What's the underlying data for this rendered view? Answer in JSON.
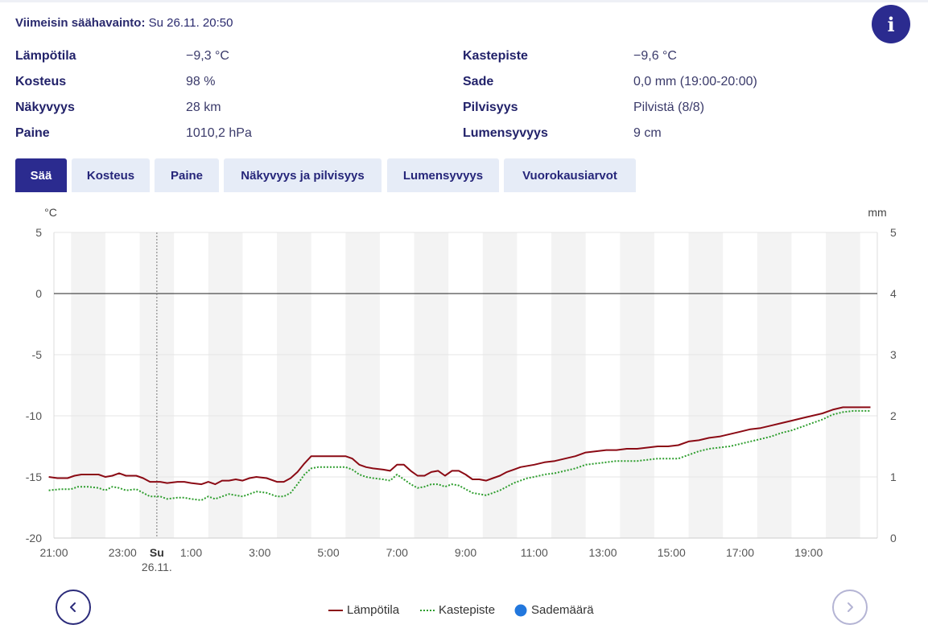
{
  "header": {
    "label": "Viimeisin säähavainto:",
    "value": "Su 26.11. 20:50",
    "info_label": "i"
  },
  "observations_left": [
    {
      "label": "Lämpötila",
      "value": "−9,3 °C"
    },
    {
      "label": "Kosteus",
      "value": "98 %"
    },
    {
      "label": "Näkyvyys",
      "value": "28 km"
    },
    {
      "label": "Paine",
      "value": "1010,2 hPa"
    }
  ],
  "observations_right": [
    {
      "label": "Kastepiste",
      "value": "−9,6 °C"
    },
    {
      "label": "Sade",
      "value": "0,0 mm (19:00-20:00)"
    },
    {
      "label": "Pilvisyys",
      "value": "Pilvistä (8/8)"
    },
    {
      "label": "Lumensyvyys",
      "value": "9 cm"
    }
  ],
  "tabs": [
    {
      "label": "Sää",
      "active": true
    },
    {
      "label": "Kosteus",
      "active": false
    },
    {
      "label": "Paine",
      "active": false
    },
    {
      "label": "Näkyvyys ja pilvisyys",
      "active": false
    },
    {
      "label": "Lumensyvyys",
      "active": false
    },
    {
      "label": "Vuorokausiarvot",
      "active": false
    }
  ],
  "chart_data": {
    "type": "line",
    "left_unit": "°C",
    "right_unit": "mm",
    "y_left_range": [
      -20,
      5
    ],
    "y_left_ticks": [
      "5",
      "0",
      "-5",
      "-10",
      "-15",
      "-20"
    ],
    "y_right_range": [
      0,
      5
    ],
    "y_right_ticks": [
      "5",
      "4",
      "3",
      "2",
      "1",
      "0"
    ],
    "x_range_hours": [
      21,
      45
    ],
    "x_ticks": [
      {
        "hour": 21,
        "label": "21:00"
      },
      {
        "hour": 23,
        "label": "23:00"
      },
      {
        "hour": 24,
        "label": "Su",
        "sublabel": "26.11."
      },
      {
        "hour": 25,
        "label": "1:00"
      },
      {
        "hour": 27,
        "label": "3:00"
      },
      {
        "hour": 29,
        "label": "5:00"
      },
      {
        "hour": 31,
        "label": "7:00"
      },
      {
        "hour": 33,
        "label": "9:00"
      },
      {
        "hour": 35,
        "label": "11:00"
      },
      {
        "hour": 37,
        "label": "13:00"
      },
      {
        "hour": 39,
        "label": "15:00"
      },
      {
        "hour": 41,
        "label": "17:00"
      },
      {
        "hour": 43,
        "label": "19:00"
      }
    ],
    "zero_line": 0,
    "day_divider_hour": 24,
    "grid": true,
    "series": [
      {
        "name": "Lämpötila",
        "color": "#8b0a14",
        "style": "solid",
        "points": [
          [
            20.85,
            -15.0
          ],
          [
            21.1,
            -15.1
          ],
          [
            21.4,
            -15.1
          ],
          [
            21.6,
            -14.9
          ],
          [
            21.8,
            -14.8
          ],
          [
            22.3,
            -14.8
          ],
          [
            22.5,
            -15.0
          ],
          [
            22.7,
            -14.9
          ],
          [
            22.9,
            -14.7
          ],
          [
            23.1,
            -14.9
          ],
          [
            23.4,
            -14.9
          ],
          [
            23.6,
            -15.1
          ],
          [
            23.8,
            -15.4
          ],
          [
            24.1,
            -15.4
          ],
          [
            24.3,
            -15.5
          ],
          [
            24.6,
            -15.4
          ],
          [
            24.8,
            -15.4
          ],
          [
            25.0,
            -15.5
          ],
          [
            25.3,
            -15.6
          ],
          [
            25.5,
            -15.4
          ],
          [
            25.7,
            -15.6
          ],
          [
            25.9,
            -15.3
          ],
          [
            26.1,
            -15.3
          ],
          [
            26.3,
            -15.2
          ],
          [
            26.5,
            -15.3
          ],
          [
            26.7,
            -15.1
          ],
          [
            26.9,
            -15.0
          ],
          [
            27.2,
            -15.1
          ],
          [
            27.5,
            -15.4
          ],
          [
            27.7,
            -15.4
          ],
          [
            27.9,
            -15.1
          ],
          [
            28.1,
            -14.6
          ],
          [
            28.3,
            -13.9
          ],
          [
            28.5,
            -13.3
          ],
          [
            28.7,
            -13.3
          ],
          [
            29.0,
            -13.3
          ],
          [
            29.5,
            -13.3
          ],
          [
            29.7,
            -13.5
          ],
          [
            29.9,
            -14.0
          ],
          [
            30.1,
            -14.2
          ],
          [
            30.3,
            -14.3
          ],
          [
            30.6,
            -14.4
          ],
          [
            30.8,
            -14.5
          ],
          [
            31.0,
            -14.0
          ],
          [
            31.2,
            -14.0
          ],
          [
            31.4,
            -14.5
          ],
          [
            31.6,
            -14.9
          ],
          [
            31.8,
            -14.9
          ],
          [
            32.0,
            -14.6
          ],
          [
            32.2,
            -14.5
          ],
          [
            32.4,
            -14.9
          ],
          [
            32.6,
            -14.5
          ],
          [
            32.8,
            -14.5
          ],
          [
            33.0,
            -14.8
          ],
          [
            33.2,
            -15.2
          ],
          [
            33.4,
            -15.2
          ],
          [
            33.6,
            -15.3
          ],
          [
            33.8,
            -15.1
          ],
          [
            34.0,
            -14.9
          ],
          [
            34.2,
            -14.6
          ],
          [
            34.4,
            -14.4
          ],
          [
            34.6,
            -14.2
          ],
          [
            34.8,
            -14.1
          ],
          [
            35.0,
            -14.0
          ],
          [
            35.3,
            -13.8
          ],
          [
            35.6,
            -13.7
          ],
          [
            35.9,
            -13.5
          ],
          [
            36.2,
            -13.3
          ],
          [
            36.5,
            -13.0
          ],
          [
            36.8,
            -12.9
          ],
          [
            37.1,
            -12.8
          ],
          [
            37.4,
            -12.8
          ],
          [
            37.7,
            -12.7
          ],
          [
            38.0,
            -12.7
          ],
          [
            38.3,
            -12.6
          ],
          [
            38.6,
            -12.5
          ],
          [
            38.9,
            -12.5
          ],
          [
            39.2,
            -12.4
          ],
          [
            39.5,
            -12.1
          ],
          [
            39.8,
            -12.0
          ],
          [
            40.1,
            -11.8
          ],
          [
            40.4,
            -11.7
          ],
          [
            40.7,
            -11.5
          ],
          [
            41.0,
            -11.3
          ],
          [
            41.3,
            -11.1
          ],
          [
            41.6,
            -11.0
          ],
          [
            41.9,
            -10.8
          ],
          [
            42.2,
            -10.6
          ],
          [
            42.5,
            -10.4
          ],
          [
            42.8,
            -10.2
          ],
          [
            43.1,
            -10.0
          ],
          [
            43.4,
            -9.8
          ],
          [
            43.7,
            -9.5
          ],
          [
            44.0,
            -9.3
          ],
          [
            44.3,
            -9.3
          ],
          [
            44.8,
            -9.3
          ]
        ]
      },
      {
        "name": "Kastepiste",
        "color": "#2e9e2e",
        "style": "dotted",
        "points": [
          [
            20.85,
            -16.1
          ],
          [
            21.2,
            -16.0
          ],
          [
            21.5,
            -16.0
          ],
          [
            21.7,
            -15.8
          ],
          [
            22.0,
            -15.8
          ],
          [
            22.3,
            -15.9
          ],
          [
            22.5,
            -16.1
          ],
          [
            22.7,
            -15.8
          ],
          [
            22.9,
            -15.9
          ],
          [
            23.1,
            -16.1
          ],
          [
            23.4,
            -16.0
          ],
          [
            23.6,
            -16.3
          ],
          [
            23.8,
            -16.6
          ],
          [
            24.1,
            -16.6
          ],
          [
            24.3,
            -16.8
          ],
          [
            24.6,
            -16.7
          ],
          [
            24.8,
            -16.7
          ],
          [
            25.0,
            -16.8
          ],
          [
            25.3,
            -16.9
          ],
          [
            25.5,
            -16.6
          ],
          [
            25.7,
            -16.8
          ],
          [
            25.9,
            -16.6
          ],
          [
            26.1,
            -16.4
          ],
          [
            26.3,
            -16.5
          ],
          [
            26.5,
            -16.6
          ],
          [
            26.7,
            -16.4
          ],
          [
            26.9,
            -16.2
          ],
          [
            27.2,
            -16.3
          ],
          [
            27.5,
            -16.6
          ],
          [
            27.7,
            -16.6
          ],
          [
            27.9,
            -16.3
          ],
          [
            28.1,
            -15.6
          ],
          [
            28.3,
            -14.8
          ],
          [
            28.5,
            -14.3
          ],
          [
            28.7,
            -14.2
          ],
          [
            29.0,
            -14.2
          ],
          [
            29.5,
            -14.2
          ],
          [
            29.7,
            -14.4
          ],
          [
            29.9,
            -14.8
          ],
          [
            30.1,
            -15.0
          ],
          [
            30.3,
            -15.1
          ],
          [
            30.6,
            -15.2
          ],
          [
            30.8,
            -15.3
          ],
          [
            31.0,
            -14.8
          ],
          [
            31.2,
            -15.2
          ],
          [
            31.4,
            -15.6
          ],
          [
            31.6,
            -15.9
          ],
          [
            31.8,
            -15.8
          ],
          [
            32.0,
            -15.6
          ],
          [
            32.2,
            -15.6
          ],
          [
            32.4,
            -15.8
          ],
          [
            32.6,
            -15.6
          ],
          [
            32.8,
            -15.7
          ],
          [
            33.0,
            -16.0
          ],
          [
            33.2,
            -16.3
          ],
          [
            33.4,
            -16.4
          ],
          [
            33.6,
            -16.5
          ],
          [
            33.8,
            -16.3
          ],
          [
            34.0,
            -16.1
          ],
          [
            34.2,
            -15.8
          ],
          [
            34.4,
            -15.5
          ],
          [
            34.6,
            -15.3
          ],
          [
            34.8,
            -15.1
          ],
          [
            35.0,
            -15.0
          ],
          [
            35.3,
            -14.8
          ],
          [
            35.6,
            -14.7
          ],
          [
            35.9,
            -14.5
          ],
          [
            36.2,
            -14.3
          ],
          [
            36.5,
            -14.0
          ],
          [
            36.8,
            -13.9
          ],
          [
            37.1,
            -13.8
          ],
          [
            37.4,
            -13.7
          ],
          [
            37.7,
            -13.7
          ],
          [
            38.0,
            -13.7
          ],
          [
            38.3,
            -13.6
          ],
          [
            38.6,
            -13.5
          ],
          [
            38.9,
            -13.5
          ],
          [
            39.2,
            -13.5
          ],
          [
            39.5,
            -13.2
          ],
          [
            39.8,
            -12.9
          ],
          [
            40.1,
            -12.7
          ],
          [
            40.4,
            -12.6
          ],
          [
            40.7,
            -12.5
          ],
          [
            41.0,
            -12.3
          ],
          [
            41.3,
            -12.1
          ],
          [
            41.6,
            -11.9
          ],
          [
            41.9,
            -11.7
          ],
          [
            42.2,
            -11.4
          ],
          [
            42.5,
            -11.2
          ],
          [
            42.8,
            -10.9
          ],
          [
            43.1,
            -10.6
          ],
          [
            43.4,
            -10.3
          ],
          [
            43.7,
            -9.9
          ],
          [
            44.0,
            -9.7
          ],
          [
            44.3,
            -9.6
          ],
          [
            44.8,
            -9.6
          ]
        ]
      },
      {
        "name": "Sademäärä",
        "color": "#2277dd",
        "style": "marker",
        "points": []
      }
    ],
    "legend_position": "bottom-center"
  },
  "nav": {
    "prev_icon": "chevron-left-icon",
    "next_icon": "chevron-right-icon"
  }
}
